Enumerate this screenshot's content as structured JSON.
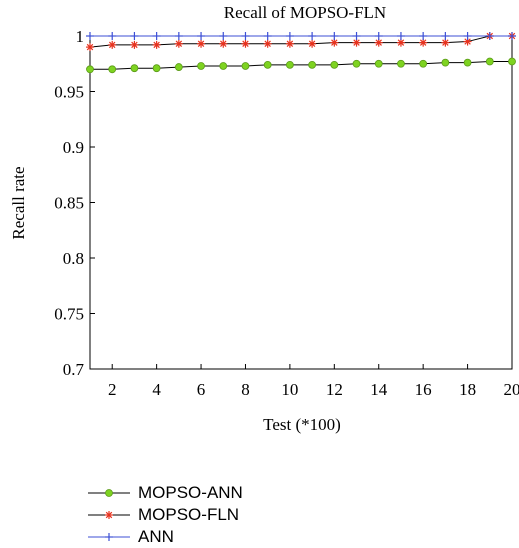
{
  "chart_data": {
    "type": "line",
    "title": "Recall of MOPSO-FLN",
    "xlabel": "Test (*100)",
    "ylabel": "Recall rate",
    "xlim": [
      1,
      20
    ],
    "ylim": [
      0.7,
      1
    ],
    "xticks": [
      2,
      4,
      6,
      8,
      10,
      12,
      14,
      16,
      18,
      20
    ],
    "yticks": [
      0.7,
      0.75,
      0.8,
      0.85,
      0.9,
      0.95,
      1
    ],
    "ytick_labels": [
      "0.7",
      "0.75",
      "0.8",
      "0.85",
      "0.9",
      "0.95",
      "1"
    ],
    "grid": false,
    "legend_position": "bottom",
    "x": [
      1,
      2,
      3,
      4,
      5,
      6,
      7,
      8,
      9,
      10,
      11,
      12,
      13,
      14,
      15,
      16,
      17,
      18,
      19,
      20
    ],
    "series": [
      {
        "name": "MOPSO-ANN",
        "color": "#7ed321",
        "marker": "circle",
        "values": [
          0.97,
          0.97,
          0.971,
          0.971,
          0.972,
          0.973,
          0.973,
          0.973,
          0.974,
          0.974,
          0.974,
          0.974,
          0.975,
          0.975,
          0.975,
          0.975,
          0.976,
          0.976,
          0.977,
          0.977
        ]
      },
      {
        "name": "MOPSO-FLN",
        "color": "#e8321e",
        "marker": "asterisk",
        "values": [
          0.99,
          0.992,
          0.992,
          0.992,
          0.993,
          0.993,
          0.993,
          0.993,
          0.993,
          0.993,
          0.993,
          0.994,
          0.994,
          0.994,
          0.994,
          0.994,
          0.994,
          0.995,
          1.0,
          1.0
        ]
      },
      {
        "name": "ANN",
        "color": "#3c4fd6",
        "marker": "plus",
        "values": [
          1,
          1,
          1,
          1,
          1,
          1,
          1,
          1,
          1,
          1,
          1,
          1,
          1,
          1,
          1,
          1,
          1,
          1,
          1,
          1
        ]
      }
    ]
  }
}
